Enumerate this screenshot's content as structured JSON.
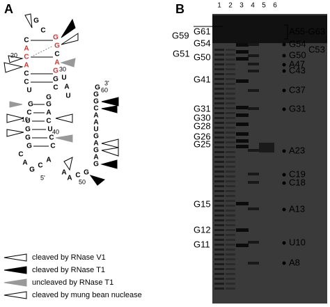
{
  "panel_a": {
    "label": "A",
    "sequence": [
      "G",
      "C",
      "C",
      "A",
      "C",
      "A",
      "C",
      "C",
      "U",
      "G",
      "G",
      "C",
      "A",
      "G",
      "G",
      "C",
      "G",
      "U",
      "A",
      "U",
      "G",
      "A",
      "C",
      "U",
      "C",
      "C",
      "G",
      "C",
      "U",
      "G",
      "G",
      "G",
      "C",
      "A",
      "G",
      "C",
      "A",
      "A",
      "A",
      "C",
      "G",
      "G",
      "A",
      "G",
      "A",
      "G",
      "U",
      "A",
      "A",
      "C",
      "G",
      "G",
      "G"
    ],
    "numbers": [
      "20",
      "30",
      "10",
      "40",
      "50",
      "60"
    ],
    "ends": [
      "3'",
      "5'"
    ]
  },
  "legend": [
    "cleaved by RNase V1",
    "cleaved by RNase T1",
    "uncleaved by RNase T1",
    "cleaved by mung bean nuclease"
  ],
  "panel_b": {
    "label": "B",
    "lanes": [
      "1",
      "2",
      "3",
      "4",
      "5",
      "6"
    ],
    "left_labels": [
      "G59",
      "G61",
      "G54",
      "G51",
      "G50",
      "G41",
      "G31",
      "G30",
      "G28",
      "G26",
      "G25",
      "G15",
      "G12",
      "G11"
    ],
    "right_labels": [
      "A55-G63",
      "G54",
      "C53",
      "G50",
      "A47",
      "C43",
      "C37",
      "G31",
      "A23",
      "C19",
      "C18",
      "A13",
      "U10",
      "A8"
    ]
  }
}
